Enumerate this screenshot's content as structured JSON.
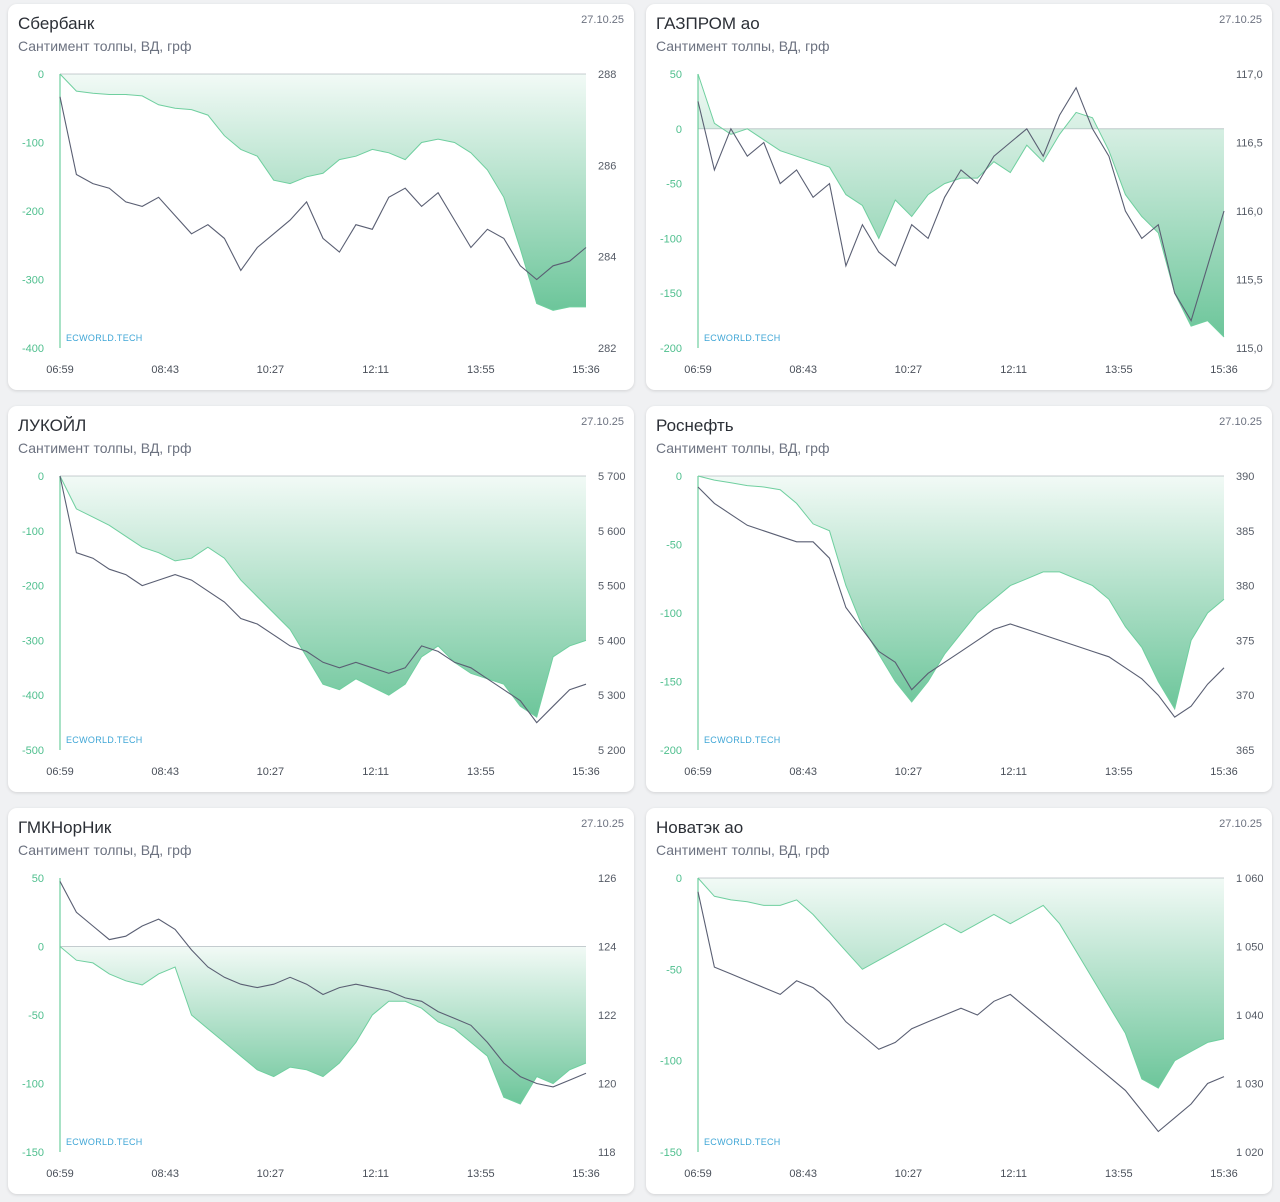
{
  "colors": {
    "sentiment_fill": "#5cbf8f",
    "sentiment_line": "#6fcf9f",
    "price_line": "#5a5f73",
    "axis_left": "#4fbf8e"
  },
  "chart_data": [
    {
      "type": "area",
      "title": "Сбербанк",
      "subtitle": "Сантимент толпы, ВД, грф",
      "date": "27.10.25",
      "watermark": "ECWORLD.TECH",
      "x_labels": [
        "06:59",
        "08:43",
        "10:27",
        "12:11",
        "13:55",
        "15:36"
      ],
      "y_left_ticks": [
        "0",
        "-100",
        "-200",
        "-300",
        "-400"
      ],
      "y_left_range": [
        -400,
        0
      ],
      "y_right_ticks": [
        "288",
        "286",
        "284",
        "282"
      ],
      "y_right_range": [
        282,
        288
      ],
      "series": [
        {
          "name": "Сантимент",
          "axis": "left",
          "values": [
            0,
            -25,
            -28,
            -30,
            -30,
            -32,
            -45,
            -50,
            -52,
            -60,
            -90,
            -110,
            -120,
            -155,
            -160,
            -150,
            -145,
            -125,
            -120,
            -110,
            -115,
            -125,
            -100,
            -95,
            -100,
            -115,
            -140,
            -180,
            -255,
            -335,
            -345,
            -340,
            -340
          ]
        },
        {
          "name": "Цена",
          "axis": "right",
          "values": [
            287.5,
            285.8,
            285.6,
            285.5,
            285.2,
            285.1,
            285.3,
            284.9,
            284.5,
            284.7,
            284.4,
            283.7,
            284.2,
            284.5,
            284.8,
            285.2,
            284.4,
            284.1,
            284.7,
            284.6,
            285.3,
            285.5,
            285.1,
            285.4,
            284.8,
            284.2,
            284.6,
            284.4,
            283.8,
            283.5,
            283.8,
            283.9,
            284.2
          ]
        }
      ]
    },
    {
      "type": "area",
      "title": "ГАЗПРОМ ао",
      "subtitle": "Сантимент толпы, ВД, грф",
      "date": "27.10.25",
      "watermark": "ECWORLD.TECH",
      "x_labels": [
        "06:59",
        "08:43",
        "10:27",
        "12:11",
        "13:55",
        "15:36"
      ],
      "y_left_ticks": [
        "50",
        "0",
        "-50",
        "-100",
        "-150",
        "-200"
      ],
      "y_left_range": [
        -200,
        50
      ],
      "y_right_ticks": [
        "117,0",
        "116,5",
        "116,0",
        "115,5",
        "115,0"
      ],
      "y_right_range": [
        115,
        117
      ],
      "series": [
        {
          "name": "Сантимент",
          "axis": "left",
          "values": [
            50,
            5,
            -5,
            0,
            -10,
            -20,
            -25,
            -30,
            -35,
            -60,
            -70,
            -100,
            -65,
            -80,
            -60,
            -50,
            -45,
            -45,
            -30,
            -40,
            -15,
            -30,
            -5,
            15,
            10,
            -20,
            -60,
            -80,
            -95,
            -150,
            -180,
            -175,
            -190
          ]
        },
        {
          "name": "Цена",
          "axis": "right",
          "values": [
            116.8,
            116.3,
            116.6,
            116.4,
            116.5,
            116.2,
            116.3,
            116.1,
            116.2,
            115.6,
            115.9,
            115.7,
            115.6,
            115.9,
            115.8,
            116.1,
            116.3,
            116.2,
            116.4,
            116.5,
            116.6,
            116.4,
            116.7,
            116.9,
            116.6,
            116.4,
            116.0,
            115.8,
            115.9,
            115.4,
            115.2,
            115.6,
            116.0
          ]
        }
      ]
    },
    {
      "type": "area",
      "title": "ЛУКОЙЛ",
      "subtitle": "Сантимент толпы, ВД, грф",
      "date": "27.10.25",
      "watermark": "ECWORLD.TECH",
      "x_labels": [
        "06:59",
        "08:43",
        "10:27",
        "12:11",
        "13:55",
        "15:36"
      ],
      "y_left_ticks": [
        "0",
        "-100",
        "-200",
        "-300",
        "-400",
        "-500"
      ],
      "y_left_range": [
        -500,
        0
      ],
      "y_right_ticks": [
        "5 700",
        "5 600",
        "5 500",
        "5 400",
        "5 300",
        "5 200"
      ],
      "y_right_range": [
        5200,
        5700
      ],
      "series": [
        {
          "name": "Сантимент",
          "axis": "left",
          "values": [
            0,
            -60,
            -75,
            -90,
            -110,
            -130,
            -140,
            -155,
            -150,
            -130,
            -150,
            -190,
            -220,
            -250,
            -280,
            -330,
            -380,
            -390,
            -370,
            -385,
            -400,
            -380,
            -330,
            -310,
            -340,
            -360,
            -370,
            -380,
            -420,
            -440,
            -330,
            -310,
            -300
          ]
        },
        {
          "name": "Цена",
          "axis": "right",
          "values": [
            5700,
            5560,
            5550,
            5530,
            5520,
            5500,
            5510,
            5520,
            5510,
            5490,
            5470,
            5440,
            5430,
            5410,
            5390,
            5380,
            5360,
            5350,
            5360,
            5350,
            5340,
            5350,
            5390,
            5380,
            5360,
            5350,
            5330,
            5310,
            5290,
            5250,
            5280,
            5310,
            5320
          ]
        }
      ]
    },
    {
      "type": "area",
      "title": "Роснефть",
      "subtitle": "Сантимент толпы, ВД, грф",
      "date": "27.10.25",
      "watermark": "ECWORLD.TECH",
      "x_labels": [
        "06:59",
        "08:43",
        "10:27",
        "12:11",
        "13:55",
        "15:36"
      ],
      "y_left_ticks": [
        "0",
        "-50",
        "-100",
        "-150",
        "-200"
      ],
      "y_left_range": [
        -200,
        0
      ],
      "y_right_ticks": [
        "390",
        "385",
        "380",
        "375",
        "370",
        "365"
      ],
      "y_right_range": [
        365,
        390
      ],
      "series": [
        {
          "name": "Сантимент",
          "axis": "left",
          "values": [
            0,
            -3,
            -5,
            -7,
            -8,
            -10,
            -20,
            -35,
            -40,
            -80,
            -110,
            -130,
            -150,
            -165,
            -150,
            -130,
            -115,
            -100,
            -90,
            -80,
            -75,
            -70,
            -70,
            -75,
            -80,
            -90,
            -110,
            -125,
            -150,
            -170,
            -120,
            -100,
            -90
          ]
        },
        {
          "name": "Цена",
          "axis": "right",
          "values": [
            389,
            387.5,
            386.5,
            385.5,
            385,
            384.5,
            384,
            384,
            382.5,
            378,
            376,
            374,
            373,
            370.5,
            372,
            373,
            374,
            375,
            376,
            376.5,
            376,
            375.5,
            375,
            374.5,
            374,
            373.5,
            372.5,
            371.5,
            370,
            368,
            369,
            371,
            372.5
          ]
        }
      ]
    },
    {
      "type": "area",
      "title": "ГМКНорНик",
      "subtitle": "Сантимент толпы, ВД, грф",
      "date": "27.10.25",
      "watermark": "ECWORLD.TECH",
      "x_labels": [
        "06:59",
        "08:43",
        "10:27",
        "12:11",
        "13:55",
        "15:36"
      ],
      "y_left_ticks": [
        "50",
        "0",
        "-50",
        "-100",
        "-150"
      ],
      "y_left_range": [
        -150,
        50
      ],
      "y_right_ticks": [
        "126",
        "124",
        "122",
        "120",
        "118"
      ],
      "y_right_range": [
        118,
        126
      ],
      "series": [
        {
          "name": "Сантимент",
          "axis": "left",
          "values": [
            0,
            -10,
            -12,
            -20,
            -25,
            -28,
            -20,
            -15,
            -50,
            -60,
            -70,
            -80,
            -90,
            -95,
            -88,
            -90,
            -95,
            -85,
            -70,
            -50,
            -40,
            -40,
            -45,
            -55,
            -60,
            -70,
            -80,
            -110,
            -115,
            -95,
            -100,
            -90,
            -85
          ]
        },
        {
          "name": "Цена",
          "axis": "right",
          "values": [
            125.9,
            125.0,
            124.6,
            124.2,
            124.3,
            124.6,
            124.8,
            124.5,
            123.9,
            123.4,
            123.1,
            122.9,
            122.8,
            122.9,
            123.1,
            122.9,
            122.6,
            122.8,
            122.9,
            122.8,
            122.7,
            122.5,
            122.4,
            122.1,
            121.9,
            121.7,
            121.2,
            120.6,
            120.2,
            120.0,
            119.9,
            120.1,
            120.3
          ]
        }
      ]
    },
    {
      "type": "area",
      "title": "Новатэк ао",
      "subtitle": "Сантимент толпы, ВД, грф",
      "date": "27.10.25",
      "watermark": "ECWORLD.TECH",
      "x_labels": [
        "06:59",
        "08:43",
        "10:27",
        "12:11",
        "13:55",
        "15:36"
      ],
      "y_left_ticks": [
        "0",
        "-50",
        "-100",
        "-150"
      ],
      "y_left_range": [
        -150,
        0
      ],
      "y_right_ticks": [
        "1 060",
        "1 050",
        "1 040",
        "1 030",
        "1 020"
      ],
      "y_right_range": [
        1020,
        1060
      ],
      "series": [
        {
          "name": "Сантимент",
          "axis": "left",
          "values": [
            0,
            -10,
            -12,
            -13,
            -15,
            -15,
            -12,
            -20,
            -30,
            -40,
            -50,
            -45,
            -40,
            -35,
            -30,
            -25,
            -30,
            -25,
            -20,
            -25,
            -20,
            -15,
            -25,
            -40,
            -55,
            -70,
            -85,
            -110,
            -115,
            -100,
            -95,
            -90,
            -88
          ]
        },
        {
          "name": "Цена",
          "axis": "right",
          "values": [
            1058,
            1047,
            1046,
            1045,
            1044,
            1043,
            1045,
            1044,
            1042,
            1039,
            1037,
            1035,
            1036,
            1038,
            1039,
            1040,
            1041,
            1040,
            1042,
            1043,
            1041,
            1039,
            1037,
            1035,
            1033,
            1031,
            1029,
            1026,
            1023,
            1025,
            1027,
            1030,
            1031
          ]
        }
      ]
    }
  ]
}
